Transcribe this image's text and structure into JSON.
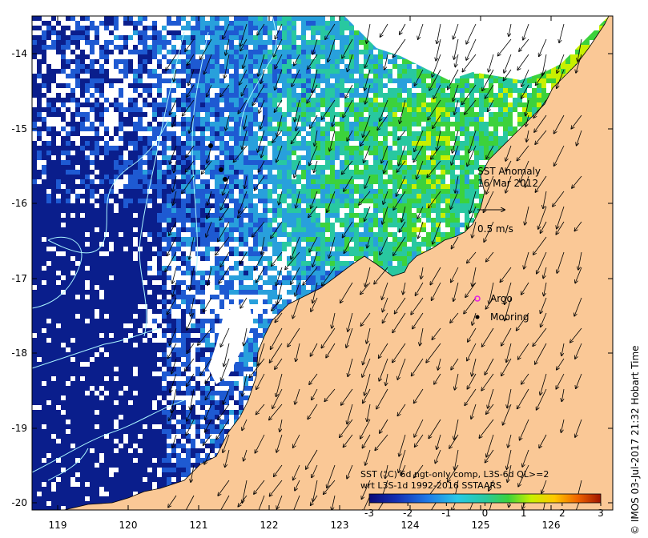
{
  "map": {
    "anomaly_title": "SST Anomaly",
    "date": "16 Mar 2012",
    "current_scale_label": "0.5 m/s",
    "legend_argo": "Argo",
    "legend_mooring": "Mooring",
    "colorbar_line1": "SST (°C) 6d ngt-only comp, L3S-6d QL>=2",
    "colorbar_line2": "wrt L3S-1d 1992-2016 SSTAARS",
    "credit": "© IMOS 03-Jul-2017 21:32 Hobart Time",
    "x_ticks": [
      "119",
      "120",
      "121",
      "122",
      "123",
      "124",
      "125",
      "126"
    ],
    "y_ticks": [
      "-14",
      "-15",
      "-16",
      "-17",
      "-18",
      "-19",
      "-20"
    ],
    "colorbar_ticks": [
      "-3",
      "-2",
      "-1",
      "0",
      "1",
      "2",
      "3"
    ],
    "colors": {
      "land": "#fac896",
      "deep_cold": "#0a1e8c",
      "cold": "#1e5ad2",
      "cool": "#28a0dc",
      "neutral": "#28c8a0",
      "warm": "#3cd23c",
      "hot": "#c8f000",
      "contour": "#aaf5ff",
      "no_data": "#ffffff"
    }
  }
}
